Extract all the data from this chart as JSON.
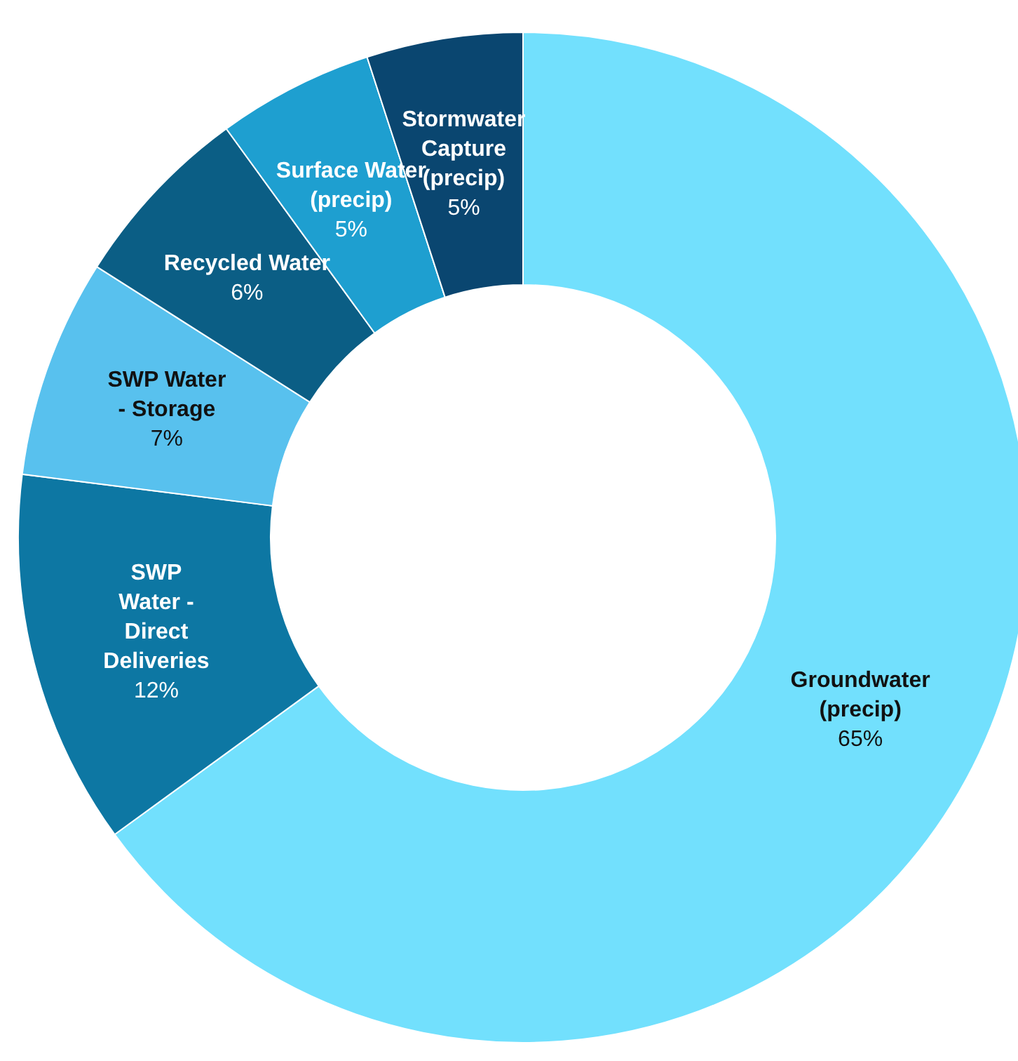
{
  "chart_data": {
    "type": "donut",
    "categories": [
      "Groundwater\n(precip)",
      "SWP\nWater -\nDirect\nDeliveries",
      "SWP Water\n- Storage",
      "Recycled Water",
      "Surface Water\n(precip)",
      "Stormwater\nCapture\n(precip)"
    ],
    "values": [
      65,
      12,
      7,
      6,
      5,
      5
    ],
    "value_labels": [
      "65%",
      "12%",
      "7%",
      "6%",
      "5%",
      "5%"
    ],
    "colors": [
      "#72e0fd",
      "#0d77a3",
      "#58c1ee",
      "#0b5e85",
      "#1e9fd0",
      "#0a4670"
    ],
    "legend": false
  }
}
